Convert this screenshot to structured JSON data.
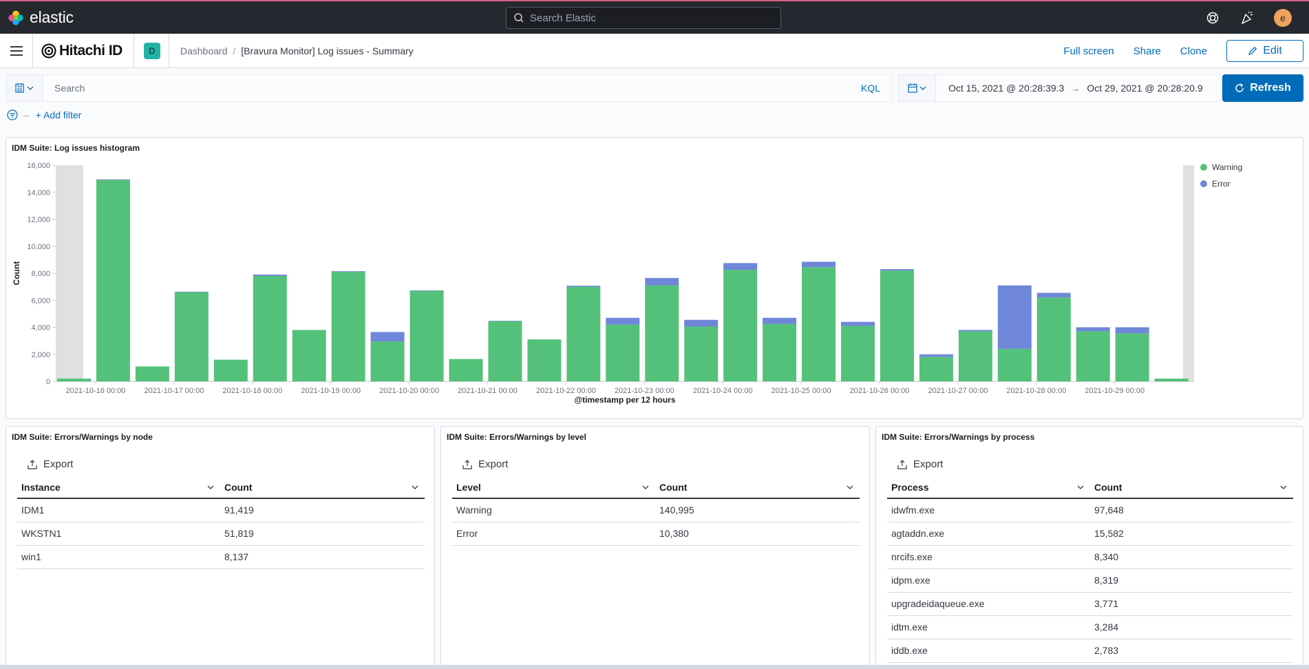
{
  "header": {
    "app_name": "elastic",
    "search_placeholder": "Search Elastic",
    "avatar_letter": "e",
    "accent_color": "#d36086"
  },
  "subheader": {
    "brand": "Hitachi ID",
    "space_letter": "D",
    "breadcrumbs": [
      "Dashboard",
      "[Bravura Monitor] Log issues - Summary"
    ],
    "actions": [
      "Full screen",
      "Share",
      "Clone"
    ],
    "edit_label": "Edit"
  },
  "query": {
    "search_placeholder": "Search",
    "language": "KQL",
    "date_start": "Oct 15, 2021 @ 20:28:39.3",
    "date_end": "Oct 29, 2021 @ 20:28:20.9",
    "refresh_label": "Refresh",
    "add_filter": "+ Add filter"
  },
  "histogram": {
    "title": "IDM Suite: Log issues histogram",
    "chart_data": {
      "type": "bar",
      "stacked": true,
      "xlabel": "@timestamp per 12 hours",
      "ylabel": "Count",
      "ylim": [
        0,
        16000
      ],
      "yticks": [
        0,
        2000,
        4000,
        6000,
        8000,
        10000,
        12000,
        14000,
        16000
      ],
      "ytick_labels": [
        "0",
        "2,000",
        "4,000",
        "6,000",
        "8,000",
        "10,000",
        "12,000",
        "14,000",
        "16,000"
      ],
      "xtick_labels": [
        "2021-10-16 00:00",
        "2021-10-17 00:00",
        "2021-10-18 00:00",
        "2021-10-19 00:00",
        "2021-10-20 00:00",
        "2021-10-21 00:00",
        "2021-10-22 00:00",
        "2021-10-23 00:00",
        "2021-10-24 00:00",
        "2021-10-25 00:00",
        "2021-10-26 00:00",
        "2021-10-27 00:00",
        "2021-10-28 00:00",
        "2021-10-29 00:00"
      ],
      "legend_position": "top-right",
      "series": [
        {
          "name": "Warning",
          "color": "#54b399",
          "values": [
            200,
            14900,
            1100,
            6600,
            1600,
            7800,
            3800,
            8100,
            2950,
            6700,
            1650,
            4450,
            3100,
            7000,
            4200,
            7100,
            4050,
            8250,
            4250,
            8450,
            4100,
            8200,
            1800,
            3700,
            2400,
            6200,
            3700,
            3550,
            200
          ]
        },
        {
          "name": "Error",
          "color": "#6092c0",
          "values": [
            0,
            50,
            0,
            30,
            0,
            100,
            0,
            50,
            700,
            30,
            0,
            30,
            0,
            80,
            500,
            550,
            500,
            500,
            450,
            400,
            300,
            100,
            200,
            100,
            4700,
            350,
            300,
            450,
            0
          ]
        }
      ]
    }
  },
  "tables": [
    {
      "title": "IDM Suite: Errors/Warnings by node",
      "export_label": "Export",
      "columns": [
        "Instance",
        "Count"
      ],
      "rows": [
        [
          "IDM1",
          "91,419"
        ],
        [
          "WKSTN1",
          "51,819"
        ],
        [
          "win1",
          "8,137"
        ]
      ]
    },
    {
      "title": "IDM Suite: Errors/Warnings by level",
      "export_label": "Export",
      "columns": [
        "Level",
        "Count"
      ],
      "rows": [
        [
          "Warning",
          "140,995"
        ],
        [
          "Error",
          "10,380"
        ]
      ]
    },
    {
      "title": "IDM Suite: Errors/Warnings by process",
      "export_label": "Export",
      "columns": [
        "Process",
        "Count"
      ],
      "rows": [
        [
          "idwfm.exe",
          "97,648"
        ],
        [
          "agtaddn.exe",
          "15,582"
        ],
        [
          "nrcifs.exe",
          "8,340"
        ],
        [
          "idpm.exe",
          "8,319"
        ],
        [
          "upgradeidaqueue.exe",
          "3,771"
        ],
        [
          "idtm.exe",
          "3,284"
        ],
        [
          "iddb.exe",
          "2,783"
        ]
      ]
    }
  ]
}
